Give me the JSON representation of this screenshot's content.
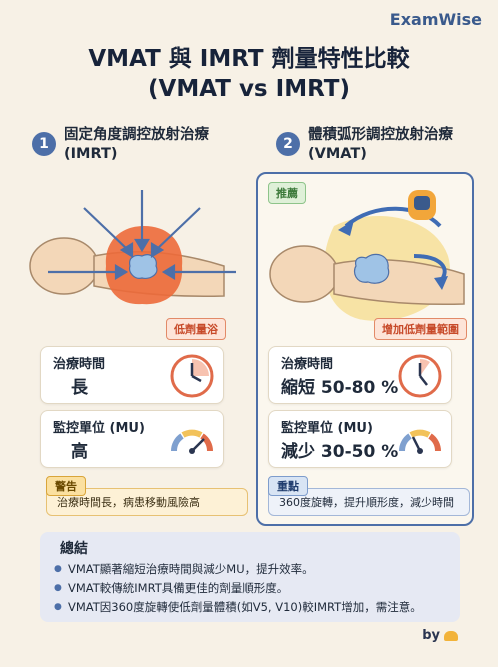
{
  "brand": "ExamWise",
  "title_line1": "VMAT 與 IMRT 劑量特性比較",
  "title_line2": "(VMAT vs IMRT)",
  "left": {
    "number": "1",
    "title_line1": "固定角度調控放射治療",
    "title_line2": "(IMRT)",
    "illus_tag": "低劑量浴",
    "time_label": "治療時間",
    "time_value": "長",
    "mu_label": "監控單位 (MU)",
    "mu_value": "高",
    "note_tag": "警告",
    "note_text": "治療時間長，病患移動風險高"
  },
  "right": {
    "number": "2",
    "title_line1": "體積弧形調控放射治療",
    "title_line2": "(VMAT)",
    "badge": "推薦",
    "illus_tag": "增加低劑量範圍",
    "time_label": "治療時間",
    "time_value": "縮短 50-80 %",
    "mu_label": "監控單位 (MU)",
    "mu_value": "減少 30-50 %",
    "note_tag": "重點",
    "note_text": "360度旋轉，提升順形度，減少時間"
  },
  "summary": {
    "title": "總結",
    "items": [
      "VMAT顯著縮短治療時間與減少MU，提升效率。",
      "VMAT較傳統IMRT具備更佳的劑量順形度。",
      "VMAT因360度旋轉使低劑量體積(如V5, V10)較IMRT增加，需注意。"
    ]
  },
  "footer": {
    "by": "by"
  },
  "icons": {
    "left_illustration": "beam-arrows-head-icon",
    "right_illustration": "rotating-gantry-head-icon",
    "clock": "clock-icon",
    "gauge": "gauge-icon",
    "byline": "logo-icon"
  },
  "colors": {
    "accent": "#4d6fa8",
    "warm": "#e86a3a",
    "soft_yellow": "#f4d36a"
  }
}
